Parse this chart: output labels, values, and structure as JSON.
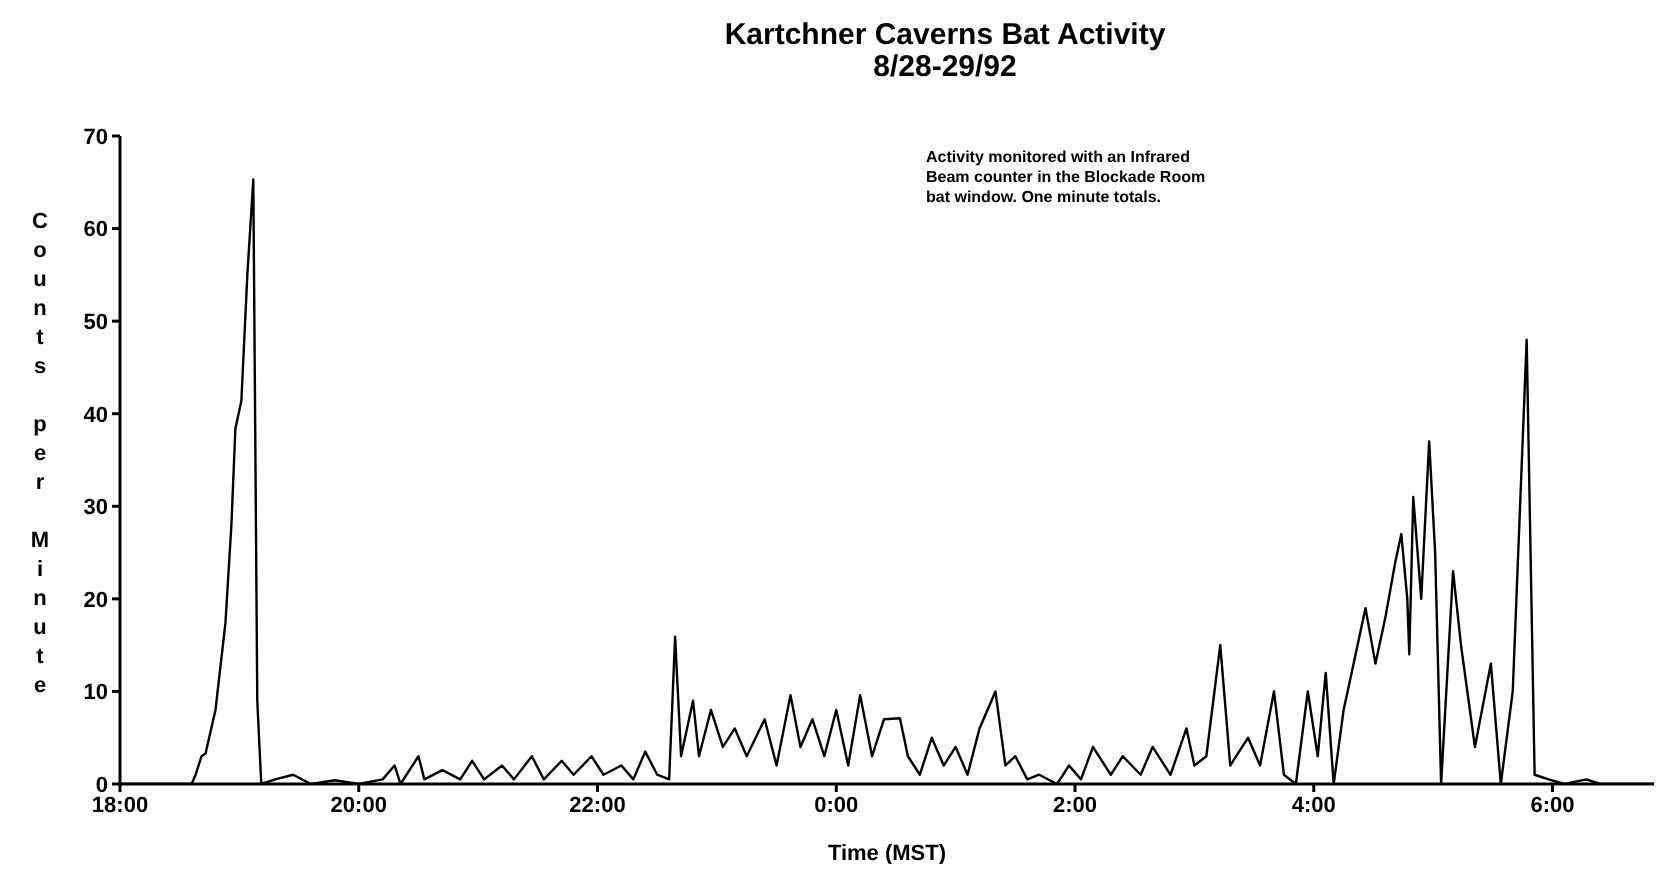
{
  "chart_data": {
    "type": "line",
    "title": "Kartchner Caverns Bat Activity",
    "subtitle": "8/28-29/92",
    "xlabel": "Time (MST)",
    "ylabel": "Counts per Minute",
    "annotations": [
      "Activity monitored with an Infrared Beam counter in the Blockade Room bat window.  One minute totals."
    ],
    "x": [
      "--08-28T18:00",
      "--08-28T18:36",
      "--08-28T18:38",
      "--08-28T18:41",
      "--08-28T18:43",
      "--08-28T18:48",
      "--08-28T18:53",
      "--08-28T18:56",
      "--08-28T18:58",
      "--08-28T19:01",
      "--08-28T19:04",
      "--08-28T19:07",
      "--08-28T19:09",
      "--08-28T19:11",
      "--08-28T19:18",
      "--08-28T19:27",
      "--08-28T19:36",
      "--08-28T19:48",
      "--08-28T20:00",
      "--08-28T20:12",
      "--08-28T20:18",
      "--08-28T20:21",
      "--08-28T20:30",
      "--08-28T20:33",
      "--08-28T20:42",
      "--08-28T20:51",
      "--08-28T20:57",
      "--08-28T21:03",
      "--08-28T21:12",
      "--08-28T21:18",
      "--08-28T21:27",
      "--08-28T21:33",
      "--08-28T21:42",
      "--08-28T21:48",
      "--08-28T21:57",
      "--08-28T22:03",
      "--08-28T22:12",
      "--08-28T22:18",
      "--08-28T22:24",
      "--08-28T22:30",
      "--08-28T22:36",
      "--08-28T22:39",
      "--08-28T22:42",
      "--08-28T22:48",
      "--08-28T22:51",
      "--08-28T22:57",
      "--08-28T23:03",
      "--08-28T23:09",
      "--08-28T23:15",
      "--08-28T23:24",
      "--08-28T23:30",
      "--08-28T23:37",
      "--08-28T23:42",
      "--08-28T23:48",
      "--08-28T23:54",
      "--08-29T00:00",
      "--08-29T00:06",
      "--08-29T00:12",
      "--08-29T00:18",
      "--08-29T00:24",
      "--08-29T00:32",
      "--08-29T00:36",
      "--08-29T00:42",
      "--08-29T00:48",
      "--08-29T00:54",
      "--08-29T01:00",
      "--08-29T01:06",
      "--08-29T01:12",
      "--08-29T01:20",
      "--08-29T01:25",
      "--08-29T01:30",
      "--08-29T01:36",
      "--08-29T01:42",
      "--08-29T01:51",
      "--08-29T01:57",
      "--08-29T02:03",
      "--08-29T02:09",
      "--08-29T02:18",
      "--08-29T02:24",
      "--08-29T02:33",
      "--08-29T02:39",
      "--08-29T02:48",
      "--08-29T02:56",
      "--08-29T03:00",
      "--08-29T03:06",
      "--08-29T03:13",
      "--08-29T03:18",
      "--08-29T03:27",
      "--08-29T03:33",
      "--08-29T03:40",
      "--08-29T03:45",
      "--08-29T03:51",
      "--08-29T03:57",
      "--08-29T04:02",
      "--08-29T04:06",
      "--08-29T04:10",
      "--08-29T04:15",
      "--08-29T04:21",
      "--08-29T04:26",
      "--08-29T04:31",
      "--08-29T04:36",
      "--08-29T04:41",
      "--08-29T04:44",
      "--08-29T04:47",
      "--08-29T04:48",
      "--08-29T04:50",
      "--08-29T04:54",
      "--08-29T04:58",
      "--08-29T05:01",
      "--08-29T05:04",
      "--08-29T05:10",
      "--08-29T05:14",
      "--08-29T05:21",
      "--08-29T05:29",
      "--08-29T05:34",
      "--08-29T05:40",
      "--08-29T05:47",
      "--08-29T05:51",
      "--08-29T05:58",
      "--08-29T06:06",
      "--08-29T06:17",
      "--08-29T06:24",
      "--08-29T06:51"
    ],
    "series": [
      {
        "color": "#000000",
        "values": [
          0,
          0,
          1,
          3,
          3.3,
          8,
          17.4,
          28,
          38.4,
          41.4,
          55,
          65.3,
          9,
          0,
          0.5,
          1,
          0,
          0.4,
          0,
          0.5,
          2,
          0,
          3,
          0.5,
          1.5,
          0.5,
          2.5,
          0.5,
          2,
          0.5,
          3,
          0.5,
          2.5,
          1,
          3,
          1,
          2,
          0.5,
          3.5,
          1,
          0.5,
          15.9,
          3,
          9,
          3,
          8,
          4,
          6,
          3,
          7,
          2,
          9.6,
          4,
          7,
          3,
          8,
          2,
          9.6,
          3,
          7,
          7.1,
          3,
          1,
          5,
          2,
          4,
          1,
          6,
          10,
          2,
          3,
          0.5,
          1,
          0,
          2,
          0.5,
          4,
          1,
          3,
          1,
          4,
          1,
          6,
          2,
          3,
          15,
          2,
          5,
          2,
          10,
          1,
          0,
          10,
          3,
          12,
          0,
          8,
          14,
          19,
          13,
          18,
          24,
          27,
          20,
          14,
          31,
          20,
          37,
          25,
          0,
          23,
          15,
          4,
          13,
          0,
          10,
          48,
          1,
          0.5,
          0,
          0.5,
          0,
          0
        ]
      }
    ],
    "xlim": [
      "--08-28T18:00",
      "--08-29T06:51"
    ],
    "xticks": [
      {
        "value": "--08-28T18:00",
        "label": "18:00"
      },
      {
        "value": "--08-28T20:00",
        "label": "20:00"
      },
      {
        "value": "--08-28T22:00",
        "label": "22:00"
      },
      {
        "value": "--08-29T00:00",
        "label": "0:00"
      },
      {
        "value": "--08-29T02:00",
        "label": "2:00"
      },
      {
        "value": "--08-29T04:00",
        "label": "4:00"
      },
      {
        "value": "--08-29T06:00",
        "label": "6:00"
      }
    ],
    "ylim": [
      0,
      70
    ],
    "yticks": [
      0,
      10,
      20,
      30,
      40,
      50,
      60,
      70
    ],
    "grid": false,
    "legend": false,
    "marker": "none",
    "line_style": "solid"
  }
}
